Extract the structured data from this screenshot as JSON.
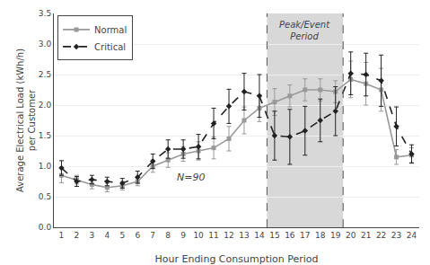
{
  "chart_data": {
    "type": "line",
    "xlabel": "Hour Ending Consumption Period",
    "ylabel": "Average Electrical Load (kWh/h)\nper Customer",
    "x": [
      1,
      2,
      3,
      4,
      5,
      6,
      7,
      8,
      9,
      10,
      11,
      12,
      13,
      14,
      15,
      16,
      17,
      18,
      19,
      20,
      21,
      22,
      23,
      24
    ],
    "series": [
      {
        "name": "Normal",
        "color": "#999999",
        "marker": "square",
        "line_style": "solid",
        "values": [
          0.85,
          0.78,
          0.7,
          0.65,
          0.68,
          0.75,
          1.0,
          1.1,
          1.2,
          1.25,
          1.3,
          1.45,
          1.75,
          1.95,
          2.05,
          2.15,
          2.25,
          2.25,
          2.22,
          2.42,
          2.35,
          2.25,
          1.15,
          1.18
        ],
        "errors": [
          0.12,
          0.07,
          0.07,
          0.07,
          0.07,
          0.07,
          0.1,
          0.12,
          0.12,
          0.15,
          0.18,
          0.2,
          0.22,
          0.22,
          0.22,
          0.18,
          0.18,
          0.18,
          0.18,
          0.3,
          0.35,
          0.35,
          0.12,
          0.12
        ]
      },
      {
        "name": "Critical",
        "color": "#222222",
        "marker": "diamond",
        "line_style": "dashed",
        "values": [
          0.97,
          0.75,
          0.78,
          0.75,
          0.72,
          0.82,
          1.08,
          1.28,
          1.28,
          1.32,
          1.7,
          1.98,
          2.22,
          2.15,
          1.5,
          1.48,
          1.58,
          1.75,
          1.9,
          2.52,
          2.5,
          2.4,
          1.65,
          1.2
        ],
        "errors": [
          0.12,
          0.08,
          0.07,
          0.07,
          0.08,
          0.1,
          0.12,
          0.15,
          0.15,
          0.2,
          0.25,
          0.28,
          0.3,
          0.35,
          0.4,
          0.45,
          0.4,
          0.35,
          0.4,
          0.35,
          0.35,
          0.42,
          0.32,
          0.15
        ]
      }
    ],
    "shaded_regions": [
      {
        "x0": 14.5,
        "x1": 19.5,
        "label": "Peak/Event\nPeriod",
        "color": "#d8d8d8",
        "border_color": "#555555"
      }
    ],
    "annotations": [
      {
        "text": "N=90",
        "x": 9.5,
        "y": 0.82
      }
    ],
    "xlim": [
      0.5,
      24.5
    ],
    "xticks": [
      1,
      2,
      3,
      4,
      5,
      6,
      7,
      8,
      9,
      10,
      11,
      12,
      13,
      14,
      15,
      16,
      17,
      18,
      19,
      20,
      21,
      22,
      23,
      24
    ],
    "ylim": [
      0.0,
      3.5
    ],
    "yticks": [
      {
        "value": 0.0,
        "label": "0.0"
      },
      0.5,
      {
        "value": 1.0,
        "label": "1.0"
      },
      1.5,
      {
        "value": 2.0,
        "label": "2.0"
      },
      2.5,
      {
        "value": 3.0,
        "label": "3.0"
      },
      3.5
    ],
    "grid": "y",
    "legend": "upper left"
  }
}
